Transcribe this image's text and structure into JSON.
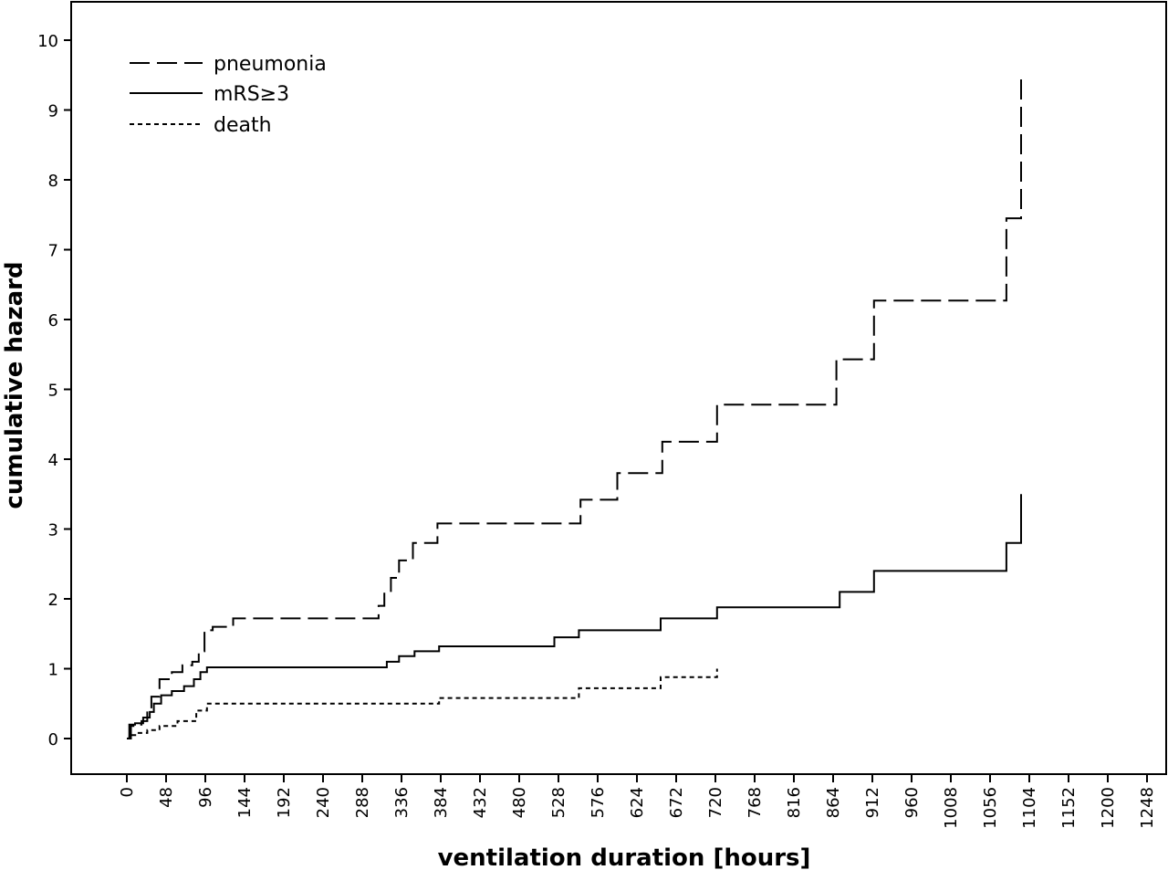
{
  "chart_data": {
    "type": "line",
    "step": true,
    "xlabel": "ventilation duration [hours]",
    "ylabel": "cumulative hazard",
    "xlim": [
      0,
      1272
    ],
    "ylim": [
      -0.5,
      10.4
    ],
    "xticks": [
      0,
      48,
      96,
      144,
      192,
      240,
      288,
      336,
      384,
      432,
      480,
      528,
      576,
      624,
      672,
      720,
      768,
      816,
      864,
      912,
      960,
      1008,
      1056,
      1104,
      1152,
      1200,
      1248
    ],
    "yticks": [
      0,
      1,
      2,
      3,
      4,
      5,
      6,
      7,
      8,
      9,
      10
    ],
    "grid": false,
    "legend_position": "top-left",
    "series": [
      {
        "name": "pneumonia",
        "dash": "long-dash",
        "x": [
          0,
          5,
          10,
          18,
          25,
          30,
          40,
          55,
          68,
          80,
          88,
          95,
          105,
          130,
          308,
          315,
          323,
          333,
          350,
          380,
          408,
          555,
          600,
          655,
          722,
          868,
          914,
          1076,
          1094
        ],
        "y": [
          0,
          0.18,
          0.2,
          0.25,
          0.4,
          0.6,
          0.85,
          0.95,
          1.05,
          1.1,
          1.25,
          1.55,
          1.6,
          1.72,
          1.9,
          2.1,
          2.3,
          2.55,
          2.8,
          3.08,
          3.08,
          3.42,
          3.8,
          4.25,
          4.78,
          5.43,
          6.27,
          7.45,
          9.45
        ]
      },
      {
        "name": "mRS≥3",
        "dash": "solid",
        "x": [
          0,
          3,
          10,
          20,
          28,
          33,
          42,
          55,
          70,
          82,
          90,
          98,
          318,
          333,
          352,
          382,
          523,
          553,
          653,
          722,
          872,
          914,
          1076,
          1094
        ],
        "y": [
          0,
          0.2,
          0.22,
          0.3,
          0.38,
          0.5,
          0.62,
          0.68,
          0.75,
          0.85,
          0.95,
          1.02,
          1.1,
          1.18,
          1.25,
          1.32,
          1.45,
          1.55,
          1.72,
          1.88,
          2.1,
          2.4,
          2.8,
          3.5
        ]
      },
      {
        "name": "death",
        "dash": "short-dash",
        "x": [
          0,
          3,
          12,
          25,
          40,
          62,
          85,
          98,
          382,
          553,
          653,
          722
        ],
        "y": [
          0,
          0.05,
          0.08,
          0.12,
          0.18,
          0.25,
          0.4,
          0.5,
          0.58,
          0.72,
          0.88,
          1.0
        ]
      }
    ]
  }
}
